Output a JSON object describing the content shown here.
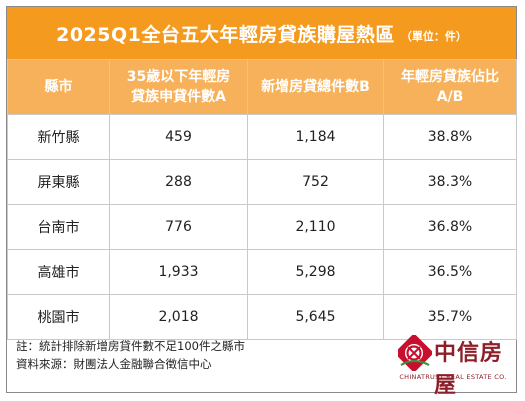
{
  "title": {
    "main": "2025Q1全台五大年輕房貸族購屋熱區",
    "unit": "（單位：件）"
  },
  "table": {
    "headers": [
      "縣市",
      "35歲以下年輕房貸族申貸件數A",
      "新增房貸總件數B",
      "年輕房貸族佔比A/B"
    ],
    "header_lines": [
      [
        "縣市"
      ],
      [
        "35歲以下年輕房",
        "貸族申貸件數A"
      ],
      [
        "新增房貸總件數B"
      ],
      [
        "年輕房貸族佔比",
        "A/B"
      ]
    ],
    "rows": [
      [
        "新竹縣",
        "459",
        "1,184",
        "38.8%"
      ],
      [
        "屏東縣",
        "288",
        "752",
        "38.3%"
      ],
      [
        "台南市",
        "776",
        "2,110",
        "36.8%"
      ],
      [
        "高雄市",
        "1,933",
        "5,298",
        "36.5%"
      ],
      [
        "桃園市",
        "2,018",
        "5,645",
        "35.7%"
      ]
    ]
  },
  "notes": {
    "note": "註：統計排除新增房貸件數不足100件之縣市",
    "source": "資料來源：財團法人金融聯合徵信中心"
  },
  "logo": {
    "name": "中信房屋",
    "sub": "CHINATRUST REAL ESTATE CO.",
    "icon": "chinatrust-logo-icon",
    "colors": {
      "mark": "#c8102e",
      "text": "#8c1f28",
      "accent": "#3a8f3a"
    }
  },
  "colors": {
    "title_bg": "#f39a1f",
    "header_bg": "#f7b15a",
    "grid": "#c9c9c9"
  }
}
